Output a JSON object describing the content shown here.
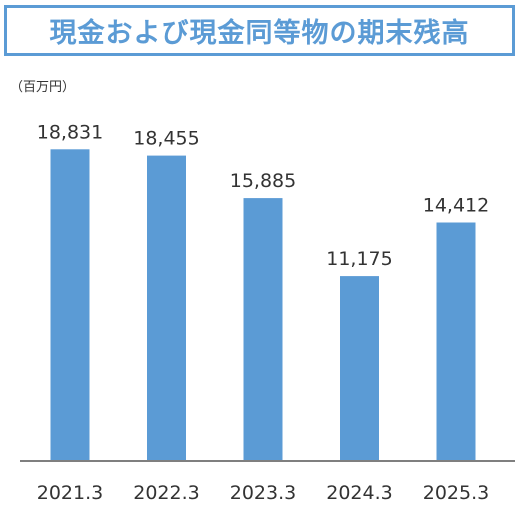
{
  "chart_data": {
    "type": "bar",
    "title": "現金および現金同等物の期末残高",
    "unit_label": "（百万円）",
    "categories": [
      "2021.3",
      "2022.3",
      "2023.3",
      "2024.3",
      "2025.3"
    ],
    "values": [
      18831,
      18455,
      15885,
      11175,
      14412
    ],
    "value_labels": [
      "18,831",
      "18,455",
      "15,885",
      "11,175",
      "14,412"
    ],
    "ylim": [
      0,
      20000
    ],
    "grid": false,
    "legend": "none",
    "bar_color": "#5b9bd5",
    "axis_color": "#7f7f7f"
  }
}
